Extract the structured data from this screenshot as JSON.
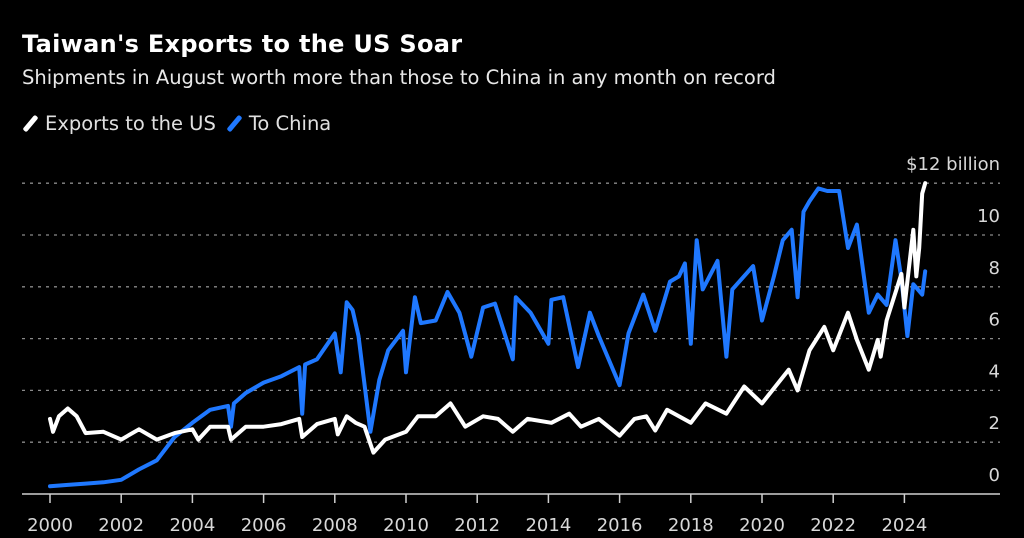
{
  "chart_data": {
    "type": "line",
    "title": "Taiwan's Exports to the US Soar",
    "subtitle": "Shipments in August worth more than those to China in any month on record",
    "unit_label": "$12 billion",
    "ylim": [
      0,
      12
    ],
    "yticks": [
      0,
      2,
      4,
      6,
      8,
      10,
      12
    ],
    "ytick_labels": [
      "0",
      "2",
      "4",
      "6",
      "8",
      "10",
      "$12 billion"
    ],
    "xticks": [
      "2000",
      "2002",
      "2004",
      "2006",
      "2008",
      "2010",
      "2012",
      "2014",
      "2016",
      "2018",
      "2020",
      "2022",
      "2024"
    ],
    "grid": true,
    "legend_position": "top-left",
    "series": [
      {
        "name": "Exports to the US",
        "color": "#ffffff",
        "points": [
          [
            "2000-01",
            2.9
          ],
          [
            "2000-02",
            2.4
          ],
          [
            "2000-04",
            3.0
          ],
          [
            "2000-07",
            3.3
          ],
          [
            "2000-10",
            3.0
          ],
          [
            "2001-01",
            2.35
          ],
          [
            "2001-07",
            2.4
          ],
          [
            "2002-01",
            2.1
          ],
          [
            "2002-07",
            2.5
          ],
          [
            "2003-01",
            2.1
          ],
          [
            "2003-07",
            2.35
          ],
          [
            "2004-01",
            2.5
          ],
          [
            "2004-03",
            2.1
          ],
          [
            "2004-07",
            2.6
          ],
          [
            "2005-01",
            2.6
          ],
          [
            "2005-02",
            2.1
          ],
          [
            "2005-07",
            2.6
          ],
          [
            "2006-01",
            2.6
          ],
          [
            "2006-07",
            2.7
          ],
          [
            "2007-01",
            2.9
          ],
          [
            "2007-02",
            2.2
          ],
          [
            "2007-07",
            2.7
          ],
          [
            "2008-01",
            2.9
          ],
          [
            "2008-02",
            2.3
          ],
          [
            "2008-05",
            3.0
          ],
          [
            "2008-08",
            2.75
          ],
          [
            "2008-11",
            2.6
          ],
          [
            "2009-02",
            1.6
          ],
          [
            "2009-06",
            2.1
          ],
          [
            "2010-01",
            2.4
          ],
          [
            "2010-05",
            3.0
          ],
          [
            "2010-11",
            3.0
          ],
          [
            "2011-04",
            3.5
          ],
          [
            "2011-09",
            2.6
          ],
          [
            "2012-03",
            3.0
          ],
          [
            "2012-08",
            2.9
          ],
          [
            "2013-01",
            2.4
          ],
          [
            "2013-06",
            2.9
          ],
          [
            "2014-02",
            2.75
          ],
          [
            "2014-08",
            3.1
          ],
          [
            "2014-12",
            2.6
          ],
          [
            "2015-06",
            2.9
          ],
          [
            "2016-01",
            2.25
          ],
          [
            "2016-06",
            2.9
          ],
          [
            "2016-10",
            3.0
          ],
          [
            "2017-01",
            2.45
          ],
          [
            "2017-05",
            3.25
          ],
          [
            "2018-01",
            2.75
          ],
          [
            "2018-06",
            3.5
          ],
          [
            "2019-01",
            3.1
          ],
          [
            "2019-07",
            4.15
          ],
          [
            "2020-01",
            3.5
          ],
          [
            "2020-10",
            4.8
          ],
          [
            "2021-01",
            4.0
          ],
          [
            "2021-05",
            5.55
          ],
          [
            "2021-10",
            6.45
          ],
          [
            "2022-01",
            5.55
          ],
          [
            "2022-06",
            7.0
          ],
          [
            "2022-09",
            5.95
          ],
          [
            "2023-01",
            4.8
          ],
          [
            "2023-04",
            5.95
          ],
          [
            "2023-05",
            5.3
          ],
          [
            "2023-07",
            6.7
          ],
          [
            "2023-12",
            8.5
          ],
          [
            "2024-01",
            7.2
          ],
          [
            "2024-04",
            10.2
          ],
          [
            "2024-05",
            8.4
          ],
          [
            "2024-06",
            9.5
          ],
          [
            "2024-07",
            11.6
          ],
          [
            "2024-08",
            12.0
          ]
        ]
      },
      {
        "name": "To China",
        "color": "#1f78ff",
        "points": [
          [
            "2000-01",
            0.3
          ],
          [
            "2000-07",
            0.35
          ],
          [
            "2001-01",
            0.4
          ],
          [
            "2001-07",
            0.45
          ],
          [
            "2002-01",
            0.55
          ],
          [
            "2002-07",
            0.95
          ],
          [
            "2003-01",
            1.3
          ],
          [
            "2003-07",
            2.2
          ],
          [
            "2004-01",
            2.75
          ],
          [
            "2004-07",
            3.25
          ],
          [
            "2005-01",
            3.4
          ],
          [
            "2005-02",
            2.6
          ],
          [
            "2005-03",
            3.5
          ],
          [
            "2005-07",
            3.9
          ],
          [
            "2006-01",
            4.3
          ],
          [
            "2006-07",
            4.55
          ],
          [
            "2007-01",
            4.9
          ],
          [
            "2007-02",
            3.1
          ],
          [
            "2007-03",
            5.0
          ],
          [
            "2007-07",
            5.2
          ],
          [
            "2008-01",
            6.2
          ],
          [
            "2008-03",
            4.7
          ],
          [
            "2008-05",
            7.4
          ],
          [
            "2008-07",
            7.1
          ],
          [
            "2008-09",
            6.1
          ],
          [
            "2009-01",
            2.4
          ],
          [
            "2009-04",
            4.4
          ],
          [
            "2009-07",
            5.55
          ],
          [
            "2009-12",
            6.3
          ],
          [
            "2010-01",
            4.7
          ],
          [
            "2010-04",
            7.6
          ],
          [
            "2010-06",
            6.6
          ],
          [
            "2010-11",
            6.7
          ],
          [
            "2011-03",
            7.8
          ],
          [
            "2011-07",
            7.0
          ],
          [
            "2011-11",
            5.3
          ],
          [
            "2012-03",
            7.2
          ],
          [
            "2012-07",
            7.35
          ],
          [
            "2013-01",
            5.2
          ],
          [
            "2013-02",
            7.6
          ],
          [
            "2013-07",
            7.0
          ],
          [
            "2014-01",
            5.8
          ],
          [
            "2014-02",
            7.5
          ],
          [
            "2014-06",
            7.6
          ],
          [
            "2014-11",
            4.9
          ],
          [
            "2015-03",
            7.0
          ],
          [
            "2015-06",
            6.1
          ],
          [
            "2016-01",
            4.2
          ],
          [
            "2016-04",
            6.2
          ],
          [
            "2016-09",
            7.7
          ],
          [
            "2017-01",
            6.3
          ],
          [
            "2017-06",
            8.2
          ],
          [
            "2017-09",
            8.4
          ],
          [
            "2017-11",
            8.9
          ],
          [
            "2018-01",
            5.8
          ],
          [
            "2018-03",
            9.8
          ],
          [
            "2018-05",
            7.9
          ],
          [
            "2018-10",
            9.0
          ],
          [
            "2019-01",
            5.3
          ],
          [
            "2019-03",
            7.9
          ],
          [
            "2019-10",
            8.8
          ],
          [
            "2020-01",
            6.7
          ],
          [
            "2020-05",
            8.4
          ],
          [
            "2020-08",
            9.8
          ],
          [
            "2020-11",
            10.2
          ],
          [
            "2021-01",
            7.6
          ],
          [
            "2021-03",
            10.9
          ],
          [
            "2021-05",
            11.3
          ],
          [
            "2021-08",
            11.8
          ],
          [
            "2021-11",
            11.7
          ],
          [
            "2022-03",
            11.7
          ],
          [
            "2022-06",
            9.5
          ],
          [
            "2022-09",
            10.4
          ],
          [
            "2023-01",
            7.0
          ],
          [
            "2023-04",
            7.7
          ],
          [
            "2023-07",
            7.3
          ],
          [
            "2023-10",
            9.8
          ],
          [
            "2023-12",
            8.3
          ],
          [
            "2024-02",
            6.1
          ],
          [
            "2024-04",
            8.1
          ],
          [
            "2024-07",
            7.7
          ],
          [
            "2024-08",
            8.6
          ]
        ]
      }
    ]
  }
}
